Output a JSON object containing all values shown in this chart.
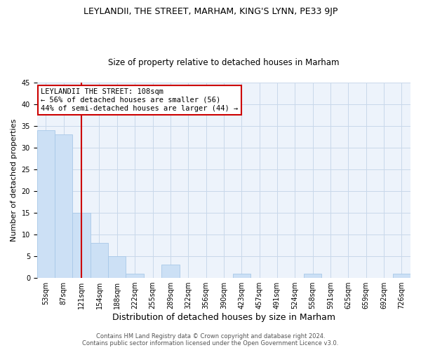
{
  "title": "LEYLANDII, THE STREET, MARHAM, KING'S LYNN, PE33 9JP",
  "subtitle": "Size of property relative to detached houses in Marham",
  "xlabel": "Distribution of detached houses by size in Marham",
  "ylabel": "Number of detached properties",
  "bar_values": [
    34,
    33,
    15,
    8,
    5,
    1,
    0,
    3,
    0,
    0,
    0,
    1,
    0,
    0,
    0,
    1,
    0,
    0,
    0,
    0,
    1
  ],
  "bin_labels": [
    "53sqm",
    "87sqm",
    "121sqm",
    "154sqm",
    "188sqm",
    "222sqm",
    "255sqm",
    "289sqm",
    "322sqm",
    "356sqm",
    "390sqm",
    "423sqm",
    "457sqm",
    "491sqm",
    "524sqm",
    "558sqm",
    "591sqm",
    "625sqm",
    "659sqm",
    "692sqm",
    "726sqm"
  ],
  "bar_color": "#cce0f5",
  "bar_edge_color": "#a8c8e8",
  "red_line_index": 2,
  "red_line_color": "#cc0000",
  "annotation_text": "LEYLANDII THE STREET: 108sqm\n← 56% of detached houses are smaller (56)\n44% of semi-detached houses are larger (44) →",
  "annotation_box_color": "white",
  "annotation_box_edge_color": "#cc0000",
  "ylim": [
    0,
    45
  ],
  "yticks": [
    0,
    5,
    10,
    15,
    20,
    25,
    30,
    35,
    40,
    45
  ],
  "footer_line1": "Contains HM Land Registry data © Crown copyright and database right 2024.",
  "footer_line2": "Contains public sector information licensed under the Open Government Licence v3.0.",
  "grid_color": "#c8d8ea",
  "background_color": "#edf3fb",
  "title_fontsize": 9,
  "subtitle_fontsize": 8.5,
  "xlabel_fontsize": 9,
  "ylabel_fontsize": 8,
  "tick_fontsize": 7,
  "annotation_fontsize": 7.5,
  "footer_fontsize": 6
}
